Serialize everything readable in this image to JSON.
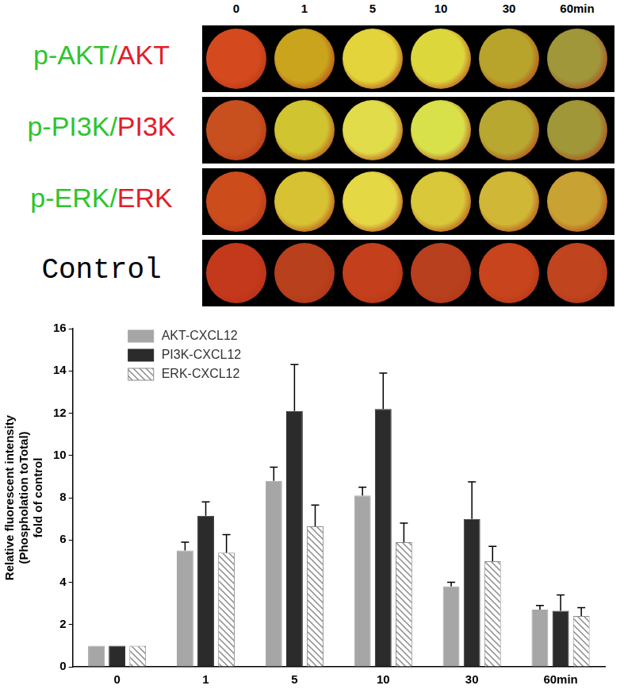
{
  "image_panel": {
    "column_labels": [
      "0",
      "1",
      "5",
      "10",
      "30",
      "60min"
    ],
    "row_labels": [
      "p-AKT/AKT",
      "p-PI3K/PI3K",
      "p-ERK/ERK",
      "Control"
    ]
  },
  "chart_data": {
    "type": "bar",
    "categories": [
      "0",
      "1",
      "5",
      "10",
      "30",
      "60min"
    ],
    "y_label": "Relative fluorescent intensity\n(Phospholation toTotal)\nfold of control",
    "ylim": [
      0,
      16
    ],
    "yticks": [
      0,
      2,
      4,
      6,
      8,
      10,
      12,
      14,
      16
    ],
    "grid": false,
    "legend": "upper left",
    "series": [
      {
        "name": "AKT-CXCL12",
        "color": "#a6a6a6",
        "values": [
          1,
          5.5,
          8.8,
          8.1,
          3.8,
          2.7
        ],
        "errors": [
          0,
          0.4,
          0.65,
          0.4,
          0.2,
          0.2
        ]
      },
      {
        "name": "PI3K-CXCL12",
        "color": "#2b2b2b",
        "values": [
          1,
          7.15,
          12.1,
          12.2,
          7.0,
          2.65
        ],
        "errors": [
          0,
          0.65,
          2.2,
          1.7,
          1.75,
          0.75
        ]
      },
      {
        "name": "ERK-CXCL12",
        "color": "#8c8c8c",
        "line_style": "hatched",
        "values": [
          1,
          5.4,
          6.65,
          5.9,
          5.0,
          2.4
        ],
        "errors": [
          0,
          0.85,
          1.0,
          0.9,
          0.7,
          0.4
        ]
      }
    ]
  }
}
